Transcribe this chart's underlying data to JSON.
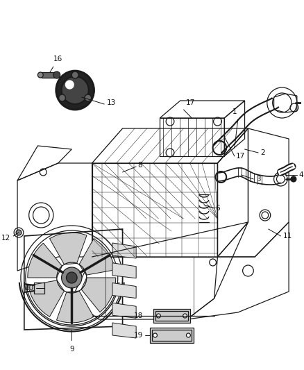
{
  "bg_color": "#ffffff",
  "line_color": "#1a1a1a",
  "label_color": "#111111",
  "fig_width": 4.38,
  "fig_height": 5.33,
  "dpi": 100,
  "font_size": 7.5
}
